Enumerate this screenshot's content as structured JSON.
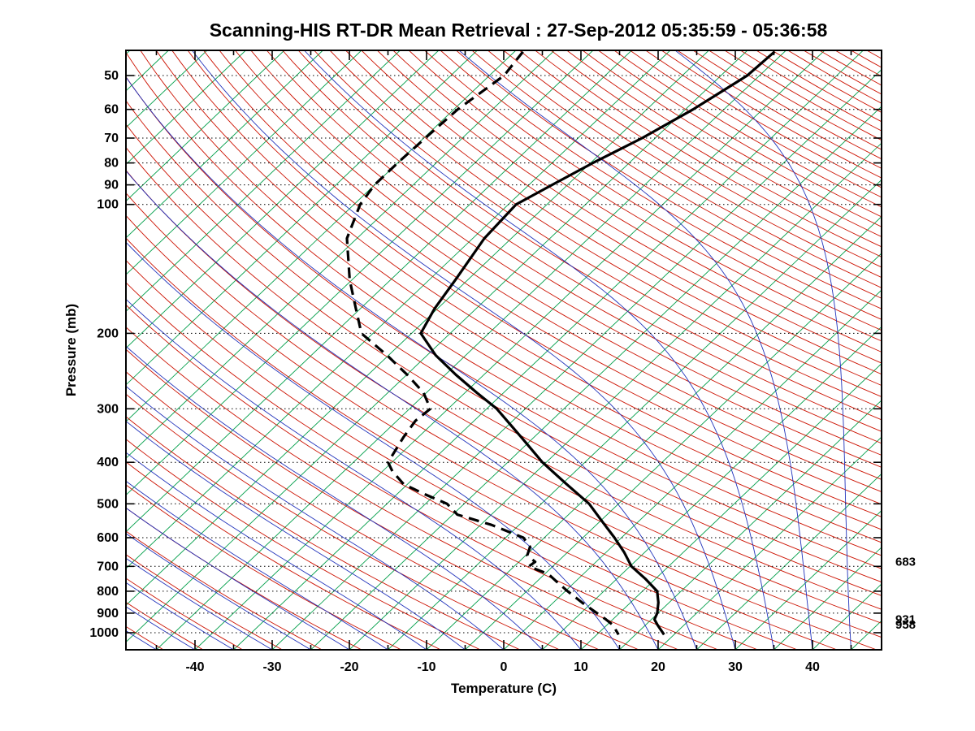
{
  "chart_data": {
    "type": "line",
    "diagram": "skew-t-log-p",
    "title": "Scanning-HIS RT-DR Mean Retrieval : 27-Sep-2012 05:35:59 - 05:36:58",
    "xlabel": "Temperature (C)",
    "ylabel": "Pressure (mb)",
    "x_tick_values": [
      -40,
      -30,
      -20,
      -10,
      0,
      10,
      20,
      30,
      40
    ],
    "x_tick_labels": [
      "-40",
      "-30",
      "-20",
      "-10",
      "0",
      "10",
      "20",
      "30",
      "40"
    ],
    "x_minor_tick_step": 5,
    "xlim_bottom_edge": [
      -48.9,
      48.9
    ],
    "y_scale": "log",
    "y_tick_values": [
      50,
      60,
      70,
      80,
      90,
      100,
      200,
      300,
      400,
      500,
      600,
      700,
      800,
      900,
      1000
    ],
    "y_tick_labels": [
      "50",
      "60",
      "70",
      "80",
      "90",
      "100",
      "200",
      "300",
      "400",
      "500",
      "600",
      "700",
      "800",
      "900",
      "1000"
    ],
    "ylim_pressure": [
      43.7,
      1095.9
    ],
    "grid": {
      "pressure_lines": "dotted-black-at-labeled-levels"
    },
    "background_line_families": [
      {
        "name": "isotherms",
        "color": "#009E49",
        "step_c": 5,
        "min_c": -130,
        "max_c": 45
      },
      {
        "name": "dry_adiabats",
        "color": "#CC1100",
        "step_c": 5,
        "min_theta_c": -60,
        "max_theta_c": 315
      },
      {
        "name": "moist_adiabats",
        "color": "#2233BB",
        "step_c": 5,
        "min_start_c": -60,
        "max_start_c": 45
      }
    ],
    "right_pressure_values": [
      683,
      931,
      958
    ],
    "right_pressure_labels": [
      "683",
      "931",
      "958"
    ],
    "series": [
      {
        "name": "temperature",
        "style": "solid",
        "color": "#000000",
        "width": 3.2,
        "points_pressure_temp_c": [
          [
            44,
            -46.3
          ],
          [
            50,
            -46.6
          ],
          [
            60,
            -49.0
          ],
          [
            70,
            -51.7
          ],
          [
            80,
            -54.7
          ],
          [
            90,
            -57.0
          ],
          [
            100,
            -59.0
          ],
          [
            120,
            -58.5
          ],
          [
            150,
            -56.6
          ],
          [
            175,
            -55.4
          ],
          [
            200,
            -53.8
          ],
          [
            225,
            -48.9
          ],
          [
            250,
            -43.6
          ],
          [
            275,
            -38.5
          ],
          [
            300,
            -33.7
          ],
          [
            350,
            -26.6
          ],
          [
            400,
            -20.5
          ],
          [
            450,
            -14.4
          ],
          [
            500,
            -8.8
          ],
          [
            550,
            -4.7
          ],
          [
            600,
            -0.9
          ],
          [
            650,
            2.4
          ],
          [
            700,
            5.2
          ],
          [
            750,
            8.8
          ],
          [
            800,
            11.9
          ],
          [
            850,
            13.6
          ],
          [
            900,
            14.9
          ],
          [
            931,
            15.4
          ],
          [
            958,
            16.5
          ],
          [
            1010,
            18.7
          ]
        ]
      },
      {
        "name": "dewpoint",
        "style": "dashed",
        "color": "#000000",
        "width": 3.2,
        "points_pressure_temp_c": [
          [
            44,
            -78.9
          ],
          [
            50,
            -78.1
          ],
          [
            60,
            -79.5
          ],
          [
            70,
            -79.8
          ],
          [
            80,
            -80.0
          ],
          [
            90,
            -80.0
          ],
          [
            100,
            -79.2
          ],
          [
            120,
            -76.3
          ],
          [
            150,
            -70.3
          ],
          [
            175,
            -65.6
          ],
          [
            200,
            -61.5
          ],
          [
            225,
            -55.2
          ],
          [
            250,
            -49.9
          ],
          [
            275,
            -45.4
          ],
          [
            300,
            -42.3
          ],
          [
            320,
            -42.6
          ],
          [
            350,
            -41.9
          ],
          [
            400,
            -40.5
          ],
          [
            420,
            -38.7
          ],
          [
            450,
            -35.5
          ],
          [
            475,
            -31.4
          ],
          [
            500,
            -27.2
          ],
          [
            530,
            -24.4
          ],
          [
            560,
            -18.6
          ],
          [
            600,
            -12.7
          ],
          [
            630,
            -10.6
          ],
          [
            660,
            -9.8
          ],
          [
            683,
            -7.9
          ],
          [
            700,
            -8.1
          ],
          [
            730,
            -4.5
          ],
          [
            760,
            -2.4
          ],
          [
            800,
            0.3
          ],
          [
            850,
            3.7
          ],
          [
            900,
            7.1
          ],
          [
            931,
            9.1
          ],
          [
            958,
            10.7
          ],
          [
            1010,
            12.8
          ]
        ]
      }
    ]
  }
}
